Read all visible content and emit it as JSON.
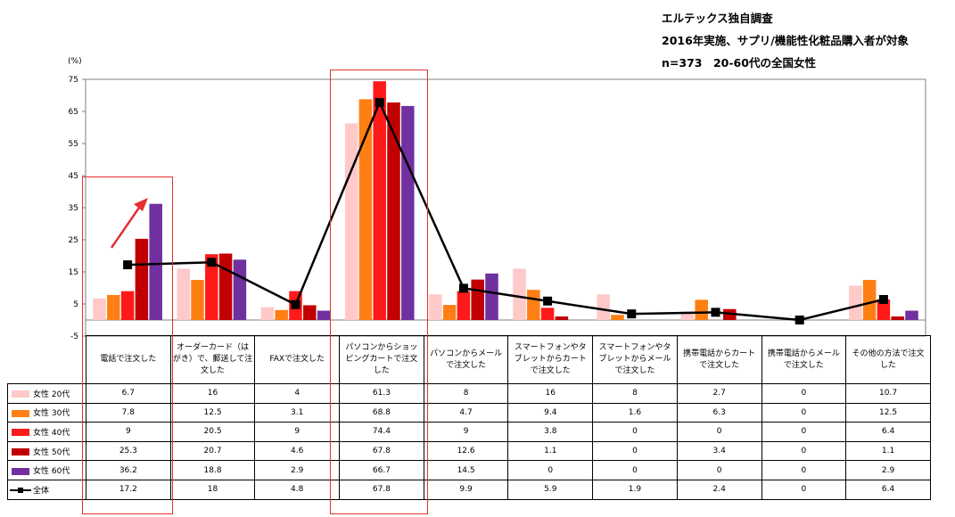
{
  "header": {
    "line1": "エルテックス独自調査",
    "line2": "2016年実施、サプリ/機能性化粧品購入者が対象",
    "line3": "n=373　20-60代の全国女性"
  },
  "chart_data": {
    "type": "bar",
    "unit_label": "(%)",
    "ylim": [
      -5,
      75
    ],
    "yticks": [
      -5,
      5,
      15,
      25,
      35,
      45,
      55,
      65,
      75
    ],
    "grid": false,
    "legend": "data-table",
    "categories": [
      "電話で注文した",
      "オーダーカード（はがき）で、郵送して注文した",
      "FAXで注文した",
      "パソコンからショッピングカートで注文した",
      "パソコンからメールで注文した",
      "スマートフォンやタブレットからカートで注文した",
      "スマートフォンやタブレットからメールで注文した",
      "携帯電話からカートで注文した",
      "携帯電話からメールで注文した",
      "その他の方法で注文した"
    ],
    "series": [
      {
        "name": "女性 20代",
        "type": "bar",
        "color": "#ffc9c9",
        "values": [
          6.7,
          16,
          4,
          61.3,
          8,
          16,
          8,
          2.7,
          0,
          10.7
        ]
      },
      {
        "name": "女性 30代",
        "type": "bar",
        "color": "#ff7f14",
        "values": [
          7.8,
          12.5,
          3.1,
          68.8,
          4.7,
          9.4,
          1.6,
          6.3,
          0,
          12.5
        ]
      },
      {
        "name": "女性 40代",
        "type": "bar",
        "color": "#ff1a1a",
        "values": [
          9,
          20.5,
          9,
          74.4,
          9,
          3.8,
          0,
          0,
          0,
          6.4
        ]
      },
      {
        "name": "女性 50代",
        "type": "bar",
        "color": "#c00000",
        "values": [
          25.3,
          20.7,
          4.6,
          67.8,
          12.6,
          1.1,
          0,
          3.4,
          0,
          1.1
        ]
      },
      {
        "name": "女性 60代",
        "type": "bar",
        "color": "#7030a0",
        "values": [
          36.2,
          18.8,
          2.9,
          66.7,
          14.5,
          0,
          0,
          0,
          0,
          2.9
        ]
      },
      {
        "name": "全体",
        "type": "line",
        "color": "#000000",
        "values": [
          17.2,
          18,
          4.8,
          67.8,
          9.9,
          5.9,
          1.9,
          2.4,
          0,
          6.4
        ]
      }
    ],
    "table_values": [
      [
        "6.7",
        "16",
        "4",
        "61.3",
        "8",
        "16",
        "8",
        "2.7",
        "0",
        "10.7"
      ],
      [
        "7.8",
        "12.5",
        "3.1",
        "68.8",
        "4.7",
        "9.4",
        "1.6",
        "6.3",
        "0",
        "12.5"
      ],
      [
        "9",
        "20.5",
        "9",
        "74.4",
        "9",
        "3.8",
        "0",
        "0",
        "0",
        "6.4"
      ],
      [
        "25.3",
        "20.7",
        "4.6",
        "67.8",
        "12.6",
        "1.1",
        "0",
        "3.4",
        "0",
        "1.1"
      ],
      [
        "36.2",
        "18.8",
        "2.9",
        "66.7",
        "14.5",
        "0",
        "0",
        "0",
        "0",
        "2.9"
      ],
      [
        "17.2",
        "18",
        "4.8",
        "67.8",
        "9.9",
        "5.9",
        "1.9",
        "2.4",
        "0",
        "6.4"
      ]
    ],
    "annotations": {
      "highlighted_categories": [
        "電話で注文した",
        "パソコンからショッピングカートで注文した"
      ],
      "highlight_color": "#e53030",
      "trend_arrow": "up-right over 電話で注文した"
    }
  }
}
